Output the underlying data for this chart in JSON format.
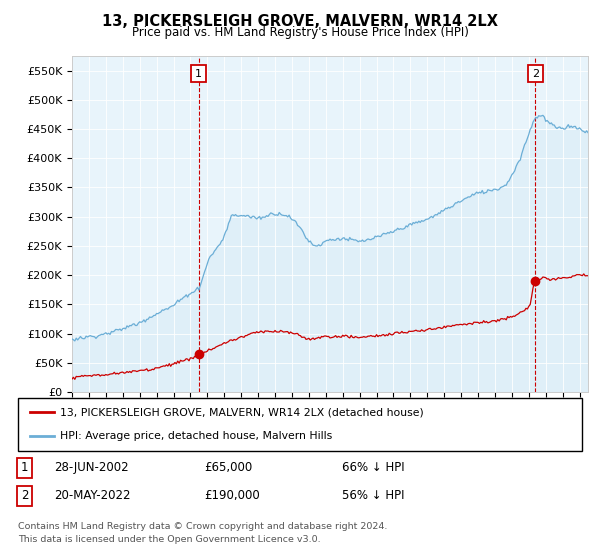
{
  "title": "13, PICKERSLEIGH GROVE, MALVERN, WR14 2LX",
  "subtitle": "Price paid vs. HM Land Registry's House Price Index (HPI)",
  "ylabel_ticks": [
    "£0",
    "£50K",
    "£100K",
    "£150K",
    "£200K",
    "£250K",
    "£300K",
    "£350K",
    "£400K",
    "£450K",
    "£500K",
    "£550K"
  ],
  "ytick_values": [
    0,
    50000,
    100000,
    150000,
    200000,
    250000,
    300000,
    350000,
    400000,
    450000,
    500000,
    550000
  ],
  "ylim": [
    0,
    575000
  ],
  "hpi_color": "#6baed6",
  "hpi_fill_color": "#ddeef8",
  "price_color": "#cc0000",
  "annotation_box_color": "#cc0000",
  "sale1_x": 2002.49,
  "sale1_y": 65000,
  "sale1_label": "1",
  "sale1_date": "28-JUN-2002",
  "sale1_price": "£65,000",
  "sale1_pct": "66% ↓ HPI",
  "sale2_x": 2022.38,
  "sale2_y": 190000,
  "sale2_label": "2",
  "sale2_date": "20-MAY-2022",
  "sale2_price": "£190,000",
  "sale2_pct": "56% ↓ HPI",
  "legend_line1": "13, PICKERSLEIGH GROVE, MALVERN, WR14 2LX (detached house)",
  "legend_line2": "HPI: Average price, detached house, Malvern Hills",
  "footnote1": "Contains HM Land Registry data © Crown copyright and database right 2024.",
  "footnote2": "This data is licensed under the Open Government Licence v3.0.",
  "xmin": 1995.0,
  "xmax": 2025.5,
  "chart_bg": "#e8f4fb"
}
